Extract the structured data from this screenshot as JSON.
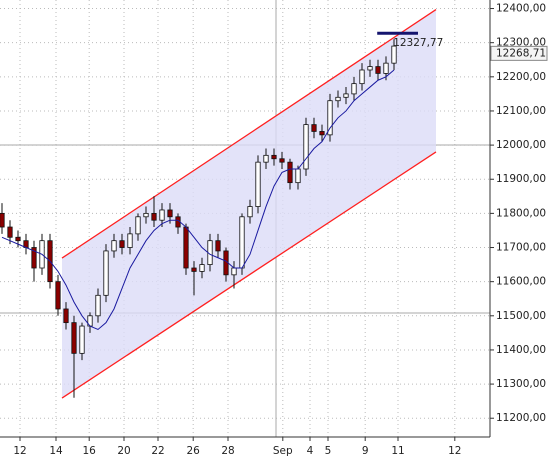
{
  "chart_data": {
    "type": "candlestick",
    "x": [
      0,
      1,
      2,
      3,
      4,
      5,
      6,
      7,
      8,
      9,
      10,
      11,
      12,
      13,
      14,
      15,
      16,
      17,
      18,
      19,
      20,
      21,
      22,
      23,
      24,
      25,
      26,
      27,
      28,
      29,
      30,
      31,
      32,
      33,
      34,
      35,
      36,
      37,
      38,
      39,
      40,
      41,
      42,
      43,
      44,
      45,
      46,
      47,
      48,
      49
    ],
    "open": [
      11800,
      11760,
      11730,
      11720,
      11700,
      11640,
      11720,
      11600,
      11520,
      11480,
      11390,
      11470,
      11500,
      11560,
      11690,
      11720,
      11700,
      11740,
      11790,
      11800,
      11780,
      11810,
      11790,
      11760,
      11640,
      11630,
      11650,
      11720,
      11690,
      11620,
      11640,
      11790,
      11820,
      11950,
      11970,
      11960,
      11950,
      11890,
      11930,
      12060,
      12040,
      12030,
      12130,
      12140,
      12150,
      12180,
      12220,
      12230,
      12210,
      12240
    ],
    "high": [
      11830,
      11780,
      11750,
      11740,
      11720,
      11740,
      11740,
      11620,
      11540,
      11500,
      11480,
      11510,
      11580,
      11710,
      11740,
      11740,
      11760,
      11800,
      11820,
      11850,
      11830,
      11830,
      11800,
      11770,
      11660,
      11670,
      11740,
      11740,
      11700,
      11660,
      11800,
      11840,
      11970,
      11990,
      11990,
      11980,
      11960,
      11940,
      12080,
      12080,
      12060,
      12150,
      12160,
      12170,
      12200,
      12240,
      12250,
      12250,
      12260,
      12310
    ],
    "low": [
      11740,
      11710,
      11700,
      11680,
      11600,
      11620,
      11580,
      11500,
      11460,
      11260,
      11370,
      11450,
      11480,
      11540,
      11670,
      11680,
      11680,
      11720,
      11770,
      11760,
      11760,
      11770,
      11740,
      11620,
      11560,
      11610,
      11630,
      11670,
      11600,
      11580,
      11620,
      11770,
      11800,
      11930,
      11940,
      11930,
      11870,
      11870,
      11910,
      12020,
      12010,
      12010,
      12110,
      12120,
      12130,
      12160,
      12200,
      12190,
      12190,
      12220
    ],
    "close": [
      11760,
      11730,
      11720,
      11700,
      11640,
      11720,
      11600,
      11520,
      11480,
      11390,
      11470,
      11500,
      11560,
      11690,
      11720,
      11700,
      11740,
      11790,
      11800,
      11780,
      11810,
      11790,
      11760,
      11640,
      11630,
      11650,
      11720,
      11690,
      11620,
      11640,
      11790,
      11820,
      11950,
      11970,
      11960,
      11950,
      11890,
      11930,
      12060,
      12040,
      12030,
      12130,
      12140,
      12150,
      12180,
      12220,
      12230,
      12210,
      12240,
      12290
    ],
    "moving_average": [
      11730,
      11720,
      11710,
      11700,
      11690,
      11680,
      11660,
      11630,
      11590,
      11540,
      11500,
      11470,
      11460,
      11480,
      11520,
      11580,
      11640,
      11680,
      11720,
      11750,
      11770,
      11780,
      11780,
      11760,
      11730,
      11700,
      11680,
      11670,
      11660,
      11640,
      11640,
      11680,
      11750,
      11820,
      11880,
      11920,
      11930,
      11930,
      11960,
      11990,
      12010,
      12050,
      12080,
      12100,
      12130,
      12150,
      12170,
      12190,
      12200,
      12220
    ],
    "channel": {
      "x": [
        7.5,
        54.25
      ],
      "upper": [
        11669,
        12397
      ],
      "lower": [
        11259,
        11980
      ]
    },
    "target": {
      "x": [
        46.9,
        52
      ],
      "value": 12327.77,
      "label": "12327,77"
    },
    "last_price": {
      "value": 12268.71,
      "label": "12268,71"
    },
    "xlim": [
      -0.25,
      61
    ],
    "ylim": [
      11145,
      12425
    ],
    "xticks": [
      {
        "value": 2.25,
        "label": "12"
      },
      {
        "value": 6.75,
        "label": "14"
      },
      {
        "value": 10.9,
        "label": "16"
      },
      {
        "value": 15.25,
        "label": "20"
      },
      {
        "value": 19.5,
        "label": "22"
      },
      {
        "value": 23.9,
        "label": "26"
      },
      {
        "value": 28.25,
        "label": "28"
      },
      {
        "value": 35.1,
        "label": "Sep"
      },
      {
        "value": 38.5,
        "label": "4"
      },
      {
        "value": 40.75,
        "label": "5"
      },
      {
        "value": 45.4,
        "label": "9"
      },
      {
        "value": 49.5,
        "label": "11"
      },
      {
        "value": 56.6,
        "label": "12"
      }
    ],
    "yticks": [
      {
        "value": 11200,
        "label": "11200,00"
      },
      {
        "value": 11300,
        "label": "11300,00"
      },
      {
        "value": 11400,
        "label": "11400,00"
      },
      {
        "value": 11500,
        "label": "11500,00"
      },
      {
        "value": 11600,
        "label": "11600,00"
      },
      {
        "value": 11700,
        "label": "11700,00"
      },
      {
        "value": 11800,
        "label": "11800,00"
      },
      {
        "value": 11900,
        "label": "11900,00"
      },
      {
        "value": 12000,
        "label": "12000,00"
      },
      {
        "value": 12100,
        "label": "12100,00"
      },
      {
        "value": 12200,
        "label": "12200,00"
      },
      {
        "value": 12300,
        "label": "12300,00"
      },
      {
        "value": 12400,
        "label": "12400,00"
      }
    ],
    "grid": true,
    "up_color": "#ffffff",
    "down_color": "#8b0000",
    "ma_color": "#1a1aa0",
    "channel_color": "#ff2020",
    "channel_fill": "#dcdcf8",
    "target_color": "#14146e"
  }
}
